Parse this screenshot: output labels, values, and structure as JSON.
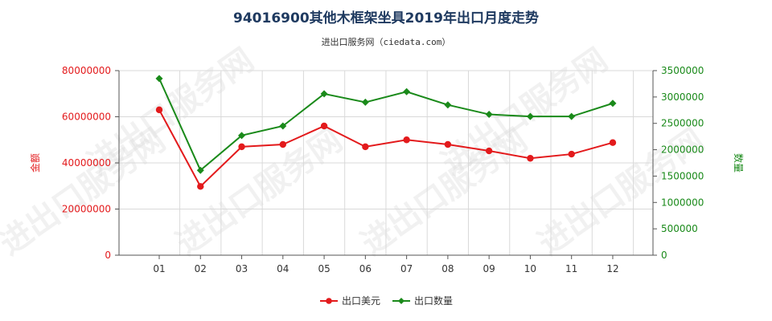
{
  "title": "94016900其他木框架坐具2019年出口月度走势",
  "subtitle": "进出口服务网（ciedata.com）",
  "watermark": "进出口服务网",
  "colors": {
    "value": "#e31a1c",
    "quantity": "#1a8a1a",
    "grid": "#d9d9d9",
    "axis": "#555555"
  },
  "chart_data": {
    "type": "line",
    "categories": [
      "01",
      "02",
      "03",
      "04",
      "05",
      "06",
      "07",
      "08",
      "09",
      "10",
      "11",
      "12"
    ],
    "y_left": {
      "label": "金额",
      "ylim": [
        0,
        80000000
      ],
      "ticks": [
        "0",
        "20000000",
        "40000000",
        "60000000",
        "80000000"
      ]
    },
    "y_right": {
      "label": "数量",
      "ylim": [
        0,
        3500000
      ],
      "ticks": [
        "0",
        "500000",
        "1000000",
        "1500000",
        "2000000",
        "2500000",
        "3000000",
        "3500000"
      ]
    },
    "grid": true,
    "legend_position": "bottom-center",
    "series": [
      {
        "name": "出口美元",
        "axis": "left",
        "color": "#e31a1c",
        "marker": "circle",
        "values": [
          63000000,
          29800000,
          47000000,
          48000000,
          56000000,
          47000000,
          50000000,
          48000000,
          45200000,
          42000000,
          43800000,
          48800000
        ]
      },
      {
        "name": "出口数量",
        "axis": "right",
        "color": "#1a8a1a",
        "marker": "diamond",
        "values": [
          3350000,
          1610000,
          2270000,
          2450000,
          3060000,
          2900000,
          3100000,
          2850000,
          2670000,
          2630000,
          2630000,
          2880000
        ]
      }
    ]
  }
}
